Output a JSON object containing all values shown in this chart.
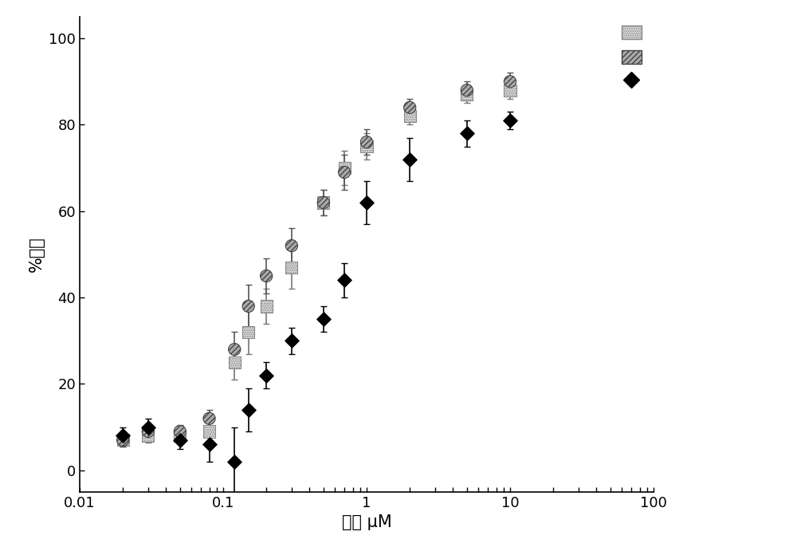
{
  "xlabel": "浓度 μM",
  "ylabel": "%抑制",
  "xlim": [
    0.01,
    100
  ],
  "ylim": [
    -5,
    105
  ],
  "yticks": [
    0,
    20,
    40,
    60,
    80,
    100
  ],
  "xticks": [
    0.01,
    0.1,
    1,
    10,
    100
  ],
  "xtick_labels": [
    "0.01",
    "0.1",
    "1",
    "10",
    "100"
  ],
  "series1_x": [
    0.02,
    0.03,
    0.05,
    0.08,
    0.12,
    0.15,
    0.2,
    0.3,
    0.5,
    0.7,
    1.0,
    2.0,
    5.0,
    10.0
  ],
  "series1_y": [
    7,
    8,
    8,
    9,
    25,
    32,
    38,
    47,
    62,
    70,
    75,
    82,
    87,
    88
  ],
  "series1_yerr": [
    1.5,
    1.5,
    1.5,
    2,
    4,
    5,
    4,
    5,
    3,
    4,
    3,
    2,
    2,
    2
  ],
  "series2_x": [
    0.02,
    0.03,
    0.05,
    0.08,
    0.12,
    0.15,
    0.2,
    0.3,
    0.5,
    0.7,
    1.0,
    2.0,
    5.0,
    10.0
  ],
  "series2_y": [
    7,
    9,
    9,
    12,
    28,
    38,
    45,
    52,
    62,
    69,
    76,
    84,
    88,
    90
  ],
  "series2_yerr": [
    1.5,
    1.5,
    1.5,
    2,
    4,
    5,
    4,
    4,
    3,
    4,
    3,
    2,
    2,
    2
  ],
  "series3_x": [
    0.02,
    0.03,
    0.05,
    0.08,
    0.12,
    0.15,
    0.2,
    0.3,
    0.5,
    0.7,
    1.0,
    2.0,
    5.0,
    10.0
  ],
  "series3_y": [
    8,
    10,
    7,
    6,
    2,
    14,
    22,
    30,
    35,
    44,
    62,
    72,
    78,
    81
  ],
  "series3_yerr": [
    2,
    2,
    2,
    4,
    8,
    5,
    3,
    3,
    3,
    4,
    5,
    5,
    3,
    2
  ],
  "background_color": "#ffffff",
  "xlabel_fontsize": 15,
  "ylabel_fontsize": 15,
  "tick_fontsize": 13,
  "curve1_color": "#aaaaaa",
  "curve2_color": "#888888",
  "curve3_color": "#000000"
}
